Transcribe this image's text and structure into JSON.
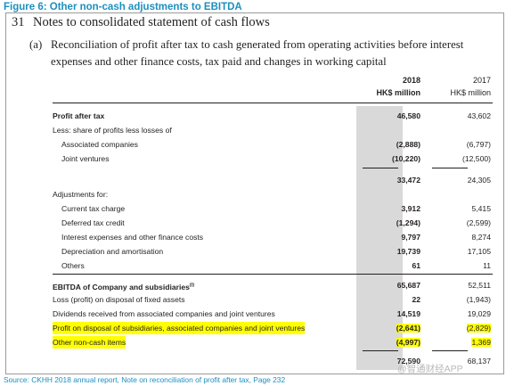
{
  "figure_title": "Figure 6: Other non-cash adjustments to EBITDA",
  "note": {
    "number": "31",
    "title": "Notes to consolidated statement of cash flows",
    "sub_tag": "(a)",
    "sub_title": "Reconciliation of profit after tax to cash generated from operating activities before interest expenses and other finance costs, tax paid and changes in working capital"
  },
  "columns": {
    "y2018": {
      "year": "2018",
      "unit": "HK$ million"
    },
    "y2017": {
      "year": "2017",
      "unit": "HK$ million"
    }
  },
  "rows": [
    {
      "label": "Profit after tax",
      "v2018": "46,580",
      "v2017": "43,602"
    },
    {
      "label": "Less: share of profits less losses of",
      "v2018": "",
      "v2017": ""
    },
    {
      "label": "Associated companies",
      "v2018": "(2,888)",
      "v2017": "(6,797)"
    },
    {
      "label": "Joint ventures",
      "v2018": "(10,220)",
      "v2017": "(12,500)"
    },
    {
      "label": "",
      "v2018": "33,472",
      "v2017": "24,305"
    },
    {
      "label": "Adjustments for:",
      "v2018": "",
      "v2017": ""
    },
    {
      "label": "Current tax charge",
      "v2018": "3,912",
      "v2017": "5,415"
    },
    {
      "label": "Deferred tax credit",
      "v2018": "(1,294)",
      "v2017": "(2,599)"
    },
    {
      "label": "Interest expenses and other finance costs",
      "v2018": "9,797",
      "v2017": "8,274"
    },
    {
      "label": "Depreciation and amortisation",
      "v2018": "19,739",
      "v2017": "17,105"
    },
    {
      "label": "Others",
      "v2018": "61",
      "v2017": "11"
    },
    {
      "label": "EBITDA of Company and subsidiaries",
      "footnote": "(i)",
      "v2018": "65,687",
      "v2017": "52,511"
    },
    {
      "label": "Loss (profit) on disposal of fixed assets",
      "v2018": "22",
      "v2017": "(1,943)"
    },
    {
      "label": "Dividends received from associated companies and joint ventures",
      "v2018": "14,519",
      "v2017": "19,029"
    },
    {
      "label": "Profit on disposal of subsidiaries, associated companies and joint ventures",
      "v2018": "(2,641)",
      "v2017": "(2,829)"
    },
    {
      "label": "Other non-cash items",
      "v2018": "(4,997)",
      "v2017": "1,369"
    },
    {
      "label": "",
      "v2018": "72,590",
      "v2017": "68,137"
    }
  ],
  "source": "Source: CKHH 2018 annual report, Note on reconciliation of profit after tax, Page 232",
  "watermark": "@智通财经APP",
  "colors": {
    "accent_blue": "#1d8fbf",
    "column_shade": "#d9d9d9",
    "highlight": "#ffff00"
  }
}
